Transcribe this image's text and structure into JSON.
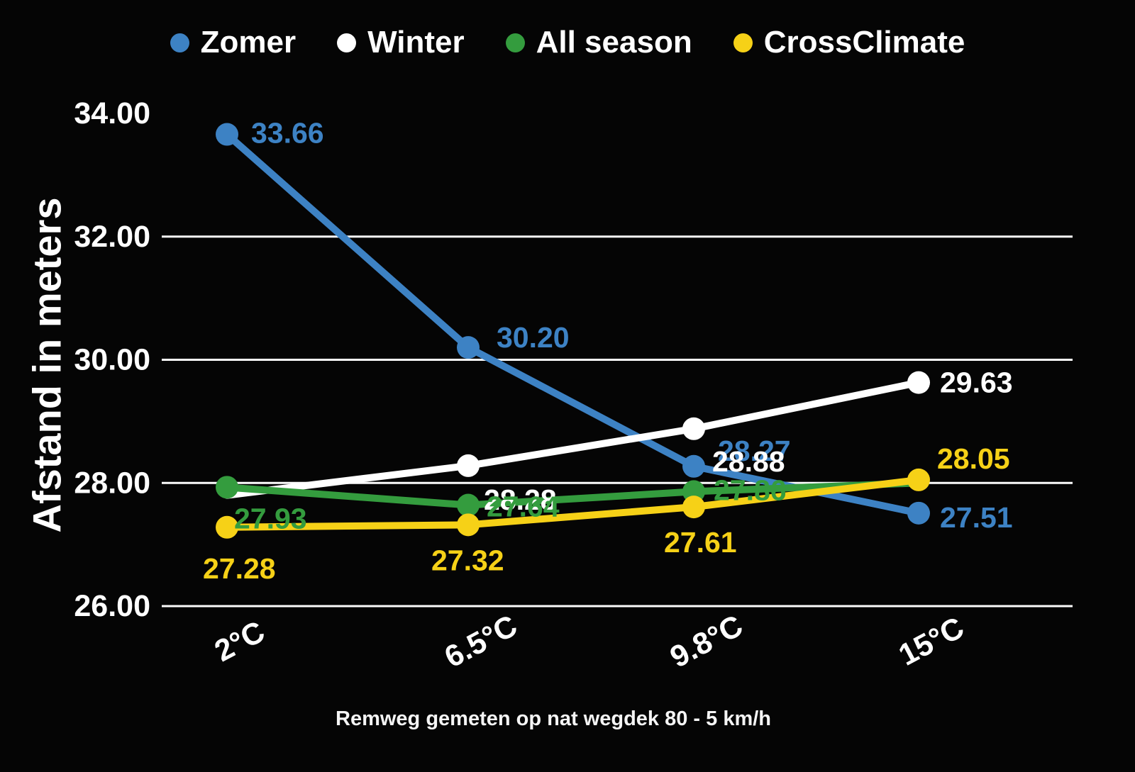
{
  "chart_data": {
    "type": "line",
    "ylabel": "Afstand in meters",
    "caption": "Remweg gemeten op nat wegdek 80 - 5 km/h",
    "categories": [
      "2°C",
      "6.5°C",
      "9.8°C",
      "15°C"
    ],
    "ylim": [
      26,
      34
    ],
    "yticks": [
      {
        "value": 34,
        "label": "34.00",
        "gridline": false
      },
      {
        "value": 32,
        "label": "32.00",
        "gridline": true
      },
      {
        "value": 30,
        "label": "30.00",
        "gridline": true
      },
      {
        "value": 28,
        "label": "28.00",
        "gridline": true
      },
      {
        "value": 26,
        "label": "26.00",
        "gridline": true
      }
    ],
    "legend_position": "top",
    "background_color": "#050505",
    "gridline_color": "#fbfbfb",
    "series": [
      {
        "name": "Zomer",
        "color": "#3d82c4",
        "values": [
          33.66,
          30.2,
          28.27,
          27.51
        ],
        "point_labels": [
          "33.66",
          "30.20",
          "28.27",
          "27.51"
        ],
        "label_offsets": [
          [
            34,
            -2
          ],
          [
            40,
            -14
          ],
          [
            34,
            -22
          ],
          [
            30,
            6
          ]
        ]
      },
      {
        "name": "Winter",
        "color": "#ffffff",
        "values": [
          27.8,
          28.28,
          28.88,
          29.63
        ],
        "point_labels": [
          "",
          "28.28",
          "28.88",
          "29.63"
        ],
        "label_offsets": [
          null,
          [
            22,
            48
          ],
          [
            26,
            46
          ],
          [
            30,
            0
          ]
        ]
      },
      {
        "name": "All season",
        "color": "#349c3e",
        "values": [
          27.93,
          27.64,
          27.86,
          28.0
        ],
        "point_labels": [
          "27.93",
          "27.64",
          "27.86",
          ""
        ],
        "label_offsets": [
          [
            10,
            44
          ],
          [
            26,
            2
          ],
          [
            28,
            -2
          ],
          null
        ]
      },
      {
        "name": "CrossClimate",
        "color": "#f6d117",
        "values": [
          27.28,
          27.32,
          27.61,
          28.05
        ],
        "point_labels": [
          "27.28",
          "27.32",
          "27.61",
          "28.05"
        ],
        "label_offsets": [
          [
            -34,
            58
          ],
          [
            -52,
            50
          ],
          [
            -42,
            50
          ],
          [
            26,
            -30
          ]
        ]
      }
    ]
  }
}
